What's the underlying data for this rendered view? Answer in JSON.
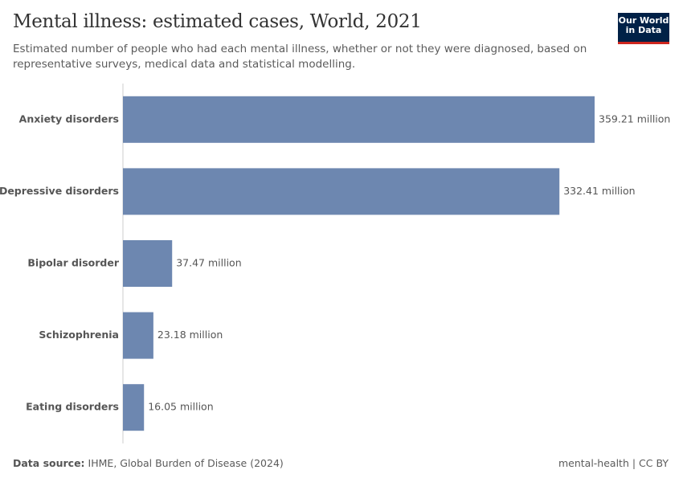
{
  "chart_data": {
    "type": "bar",
    "orientation": "horizontal",
    "title": "Mental illness: estimated cases, World, 2021",
    "subtitle": "Estimated number of people who had each mental illness, whether or not they were diagnosed, based on representative surveys, medical data and statistical modelling.",
    "categories": [
      "Anxiety disorders",
      "Depressive disorders",
      "Bipolar disorder",
      "Schizophrenia",
      "Eating disorders"
    ],
    "values": [
      359.21,
      332.41,
      37.47,
      23.18,
      16.05
    ],
    "value_labels": [
      "359.21 million",
      "332.41 million",
      "37.47 million",
      "23.18 million",
      "16.05 million"
    ],
    "color": "#6d87b0",
    "source_label": "Data source:",
    "source": "IHME, Global Burden of Disease (2024)",
    "footer_right": "mental-health | CC BY",
    "logo": [
      "Our World",
      "in Data"
    ]
  }
}
